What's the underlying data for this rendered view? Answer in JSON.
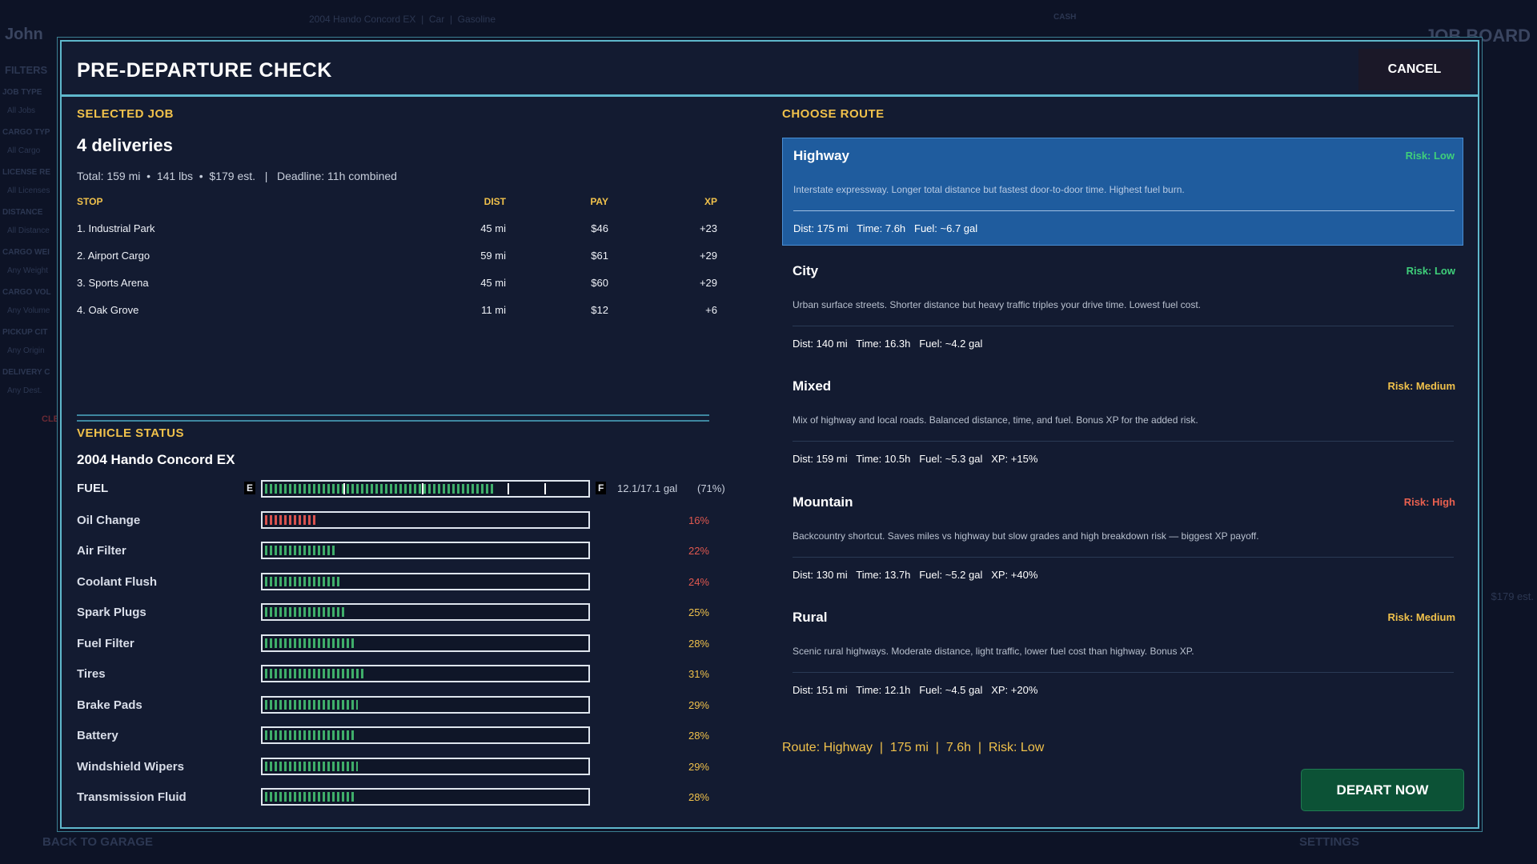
{
  "background": {
    "player": "John",
    "vehicle_line": "2004 Hando Concord EX  |  Car  |  Gasoline",
    "cash_label": "CASH",
    "job_board": "JOB BOARD",
    "filters": "FILTERS",
    "filter_groups": [
      {
        "label": "JOB TYPE",
        "value": "All Jobs"
      },
      {
        "label": "CARGO TYP",
        "value": "All Cargo"
      },
      {
        "label": "LICENSE RE",
        "value": "All Licenses"
      },
      {
        "label": "DISTANCE",
        "value": "All Distance"
      },
      {
        "label": "CARGO WEI",
        "value": "Any Weight"
      },
      {
        "label": "CARGO VOL",
        "value": "Any Volume"
      },
      {
        "label": "PICKUP CIT",
        "value": "Any Origin"
      },
      {
        "label": "DELIVERY C",
        "value": "Any Dest."
      }
    ],
    "clear": "CLE",
    "estimate": "$179 est.",
    "back": "BACK TO GARAGE",
    "settings": "SETTINGS"
  },
  "modal": {
    "title": "PRE-DEPARTURE CHECK",
    "cancel": "CANCEL",
    "selected_job": {
      "heading": "SELECTED JOB",
      "name": "4 deliveries",
      "summary": "Total: 159 mi  •  141 lbs  •  $179 est.   |   Deadline: 11h combined",
      "columns": [
        "STOP",
        "DIST",
        "PAY",
        "XP"
      ],
      "rows": [
        [
          "1. Industrial Park",
          "45 mi",
          "$46",
          "+23"
        ],
        [
          "2. Airport Cargo",
          "59 mi",
          "$61",
          "+29"
        ],
        [
          "3. Sports Arena",
          "45 mi",
          "$60",
          "+29"
        ],
        [
          "4. Oak Grove",
          "11 mi",
          "$12",
          "+6"
        ]
      ]
    },
    "vehicle_status": {
      "heading": "VEHICLE STATUS",
      "vehicle": "2004 Hando Concord EX",
      "fuel": {
        "label": "FUEL",
        "empty": "E",
        "full": "F",
        "reading": "12.1/17.1 gal",
        "percent": {
          "value": 71,
          "label": "(71%)"
        },
        "color": "#3fae6a"
      },
      "components": [
        {
          "name": "Oil Change",
          "percent": {
            "value": 16,
            "label": "16%"
          },
          "color": "#d9534f",
          "label_color": "#e0584f"
        },
        {
          "name": "Air Filter",
          "percent": {
            "value": 22,
            "label": "22%"
          },
          "color": "#3fae6a",
          "label_color": "#e0584f"
        },
        {
          "name": "Coolant Flush",
          "percent": {
            "value": 24,
            "label": "24%"
          },
          "color": "#3fae6a",
          "label_color": "#e0584f"
        },
        {
          "name": "Spark Plugs",
          "percent": {
            "value": 25,
            "label": "25%"
          },
          "color": "#3fae6a",
          "label_color": "#f0c14b"
        },
        {
          "name": "Fuel Filter",
          "percent": {
            "value": 28,
            "label": "28%"
          },
          "color": "#3fae6a",
          "label_color": "#f0c14b"
        },
        {
          "name": "Tires",
          "percent": {
            "value": 31,
            "label": "31%"
          },
          "color": "#3fae6a",
          "label_color": "#f0c14b"
        },
        {
          "name": "Brake Pads",
          "percent": {
            "value": 29,
            "label": "29%"
          },
          "color": "#3fae6a",
          "label_color": "#f0c14b"
        },
        {
          "name": "Battery",
          "percent": {
            "value": 28,
            "label": "28%"
          },
          "color": "#3fae6a",
          "label_color": "#f0c14b"
        },
        {
          "name": "Windshield Wipers",
          "percent": {
            "value": 29,
            "label": "29%"
          },
          "color": "#3fae6a",
          "label_color": "#f0c14b"
        },
        {
          "name": "Transmission Fluid",
          "percent": {
            "value": 28,
            "label": "28%"
          },
          "color": "#3fae6a",
          "label_color": "#f0c14b"
        }
      ]
    },
    "routes": {
      "heading": "CHOOSE ROUTE",
      "options": [
        {
          "name": "Highway",
          "risk": "Risk: Low",
          "risk_color": "#3fcf7a",
          "selected": true,
          "description": "Interstate expressway. Longer total distance but fastest door-to-door time. Highest fuel burn.",
          "stats": "Dist: 175 mi   Time: 7.6h   Fuel: ~6.7 gal"
        },
        {
          "name": "City",
          "risk": "Risk: Low",
          "risk_color": "#3fcf7a",
          "selected": false,
          "description": "Urban surface streets. Shorter distance but heavy traffic triples your drive time. Lowest fuel cost.",
          "stats": "Dist: 140 mi   Time: 16.3h   Fuel: ~4.2 gal"
        },
        {
          "name": "Mixed",
          "risk": "Risk: Medium",
          "risk_color": "#f0c14b",
          "selected": false,
          "description": "Mix of highway and local roads. Balanced distance, time, and fuel. Bonus XP for the added risk.",
          "stats": "Dist: 159 mi   Time: 10.5h   Fuel: ~5.3 gal   XP: +15%"
        },
        {
          "name": "Mountain",
          "risk": "Risk: High",
          "risk_color": "#e8604f",
          "selected": false,
          "description": "Backcountry shortcut. Saves miles vs highway but slow grades and high breakdown risk — biggest XP payoff.",
          "stats": "Dist: 130 mi   Time: 13.7h   Fuel: ~5.2 gal   XP: +40%"
        },
        {
          "name": "Rural",
          "risk": "Risk: Medium",
          "risk_color": "#f0c14b",
          "selected": false,
          "description": "Scenic rural highways. Moderate distance, light traffic, lower fuel cost than highway. Bonus XP.",
          "stats": "Dist: 151 mi   Time: 12.1h   Fuel: ~4.5 gal   XP: +20%"
        }
      ],
      "summary": "Route: Highway  |  175 mi  |  7.6h  |  Risk: Low"
    },
    "depart": "DEPART NOW"
  }
}
